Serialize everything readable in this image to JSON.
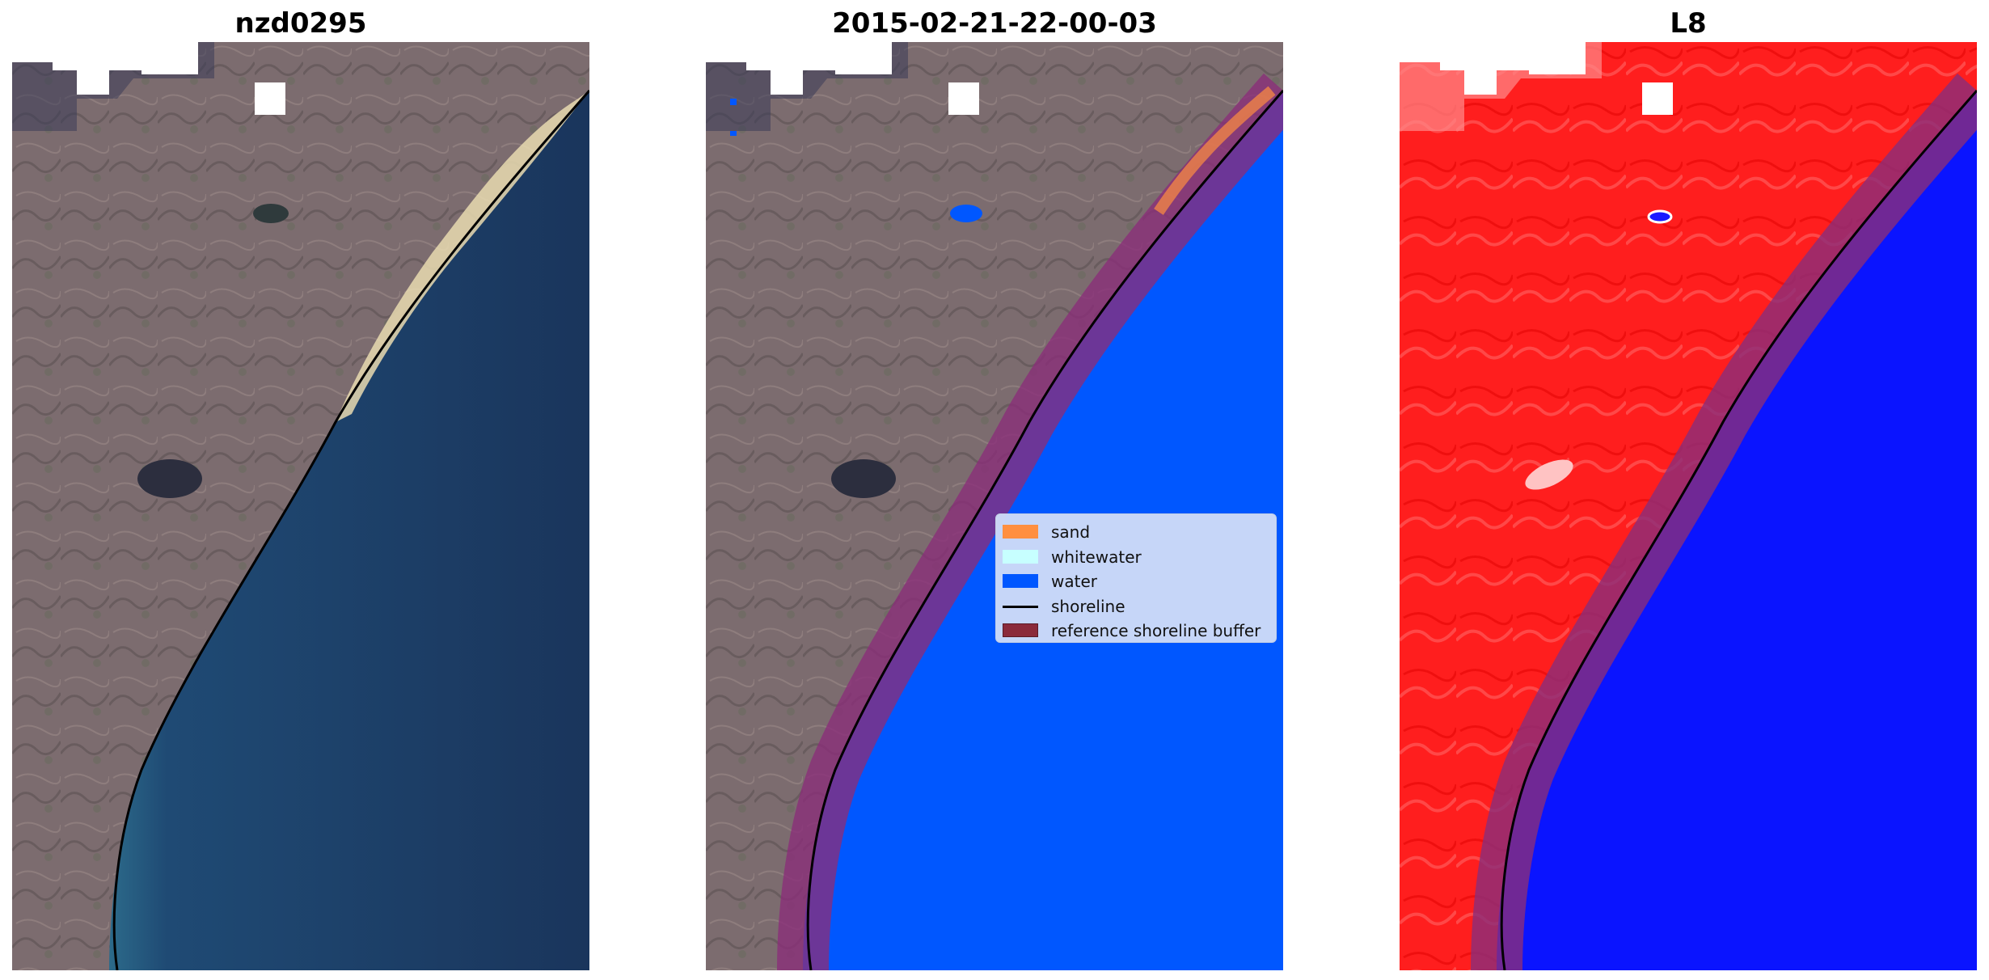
{
  "panels": [
    {
      "title": "nzd0295"
    },
    {
      "title": "2015-02-21-22-00-03"
    },
    {
      "title": "L8"
    }
  ],
  "legend": {
    "items": [
      {
        "label": "sand",
        "color": "#ff8f40"
      },
      {
        "label": "whitewater",
        "color": "#c7ffff"
      },
      {
        "label": "water",
        "color": "#0057ff"
      },
      {
        "label": "shoreline",
        "color": "#000000"
      },
      {
        "label": "reference shoreline buffer",
        "color": "#8b2a3b"
      }
    ]
  },
  "colors": {
    "land": "#7d6f72",
    "ocean": "#1b3a63",
    "beach": "#e8d8ad",
    "water_class": "#0057ff",
    "land_index": "#ff1e1e",
    "water_index": "#0a14ff",
    "buffer": "#8a2d7a",
    "no_data": "#ffffff"
  }
}
